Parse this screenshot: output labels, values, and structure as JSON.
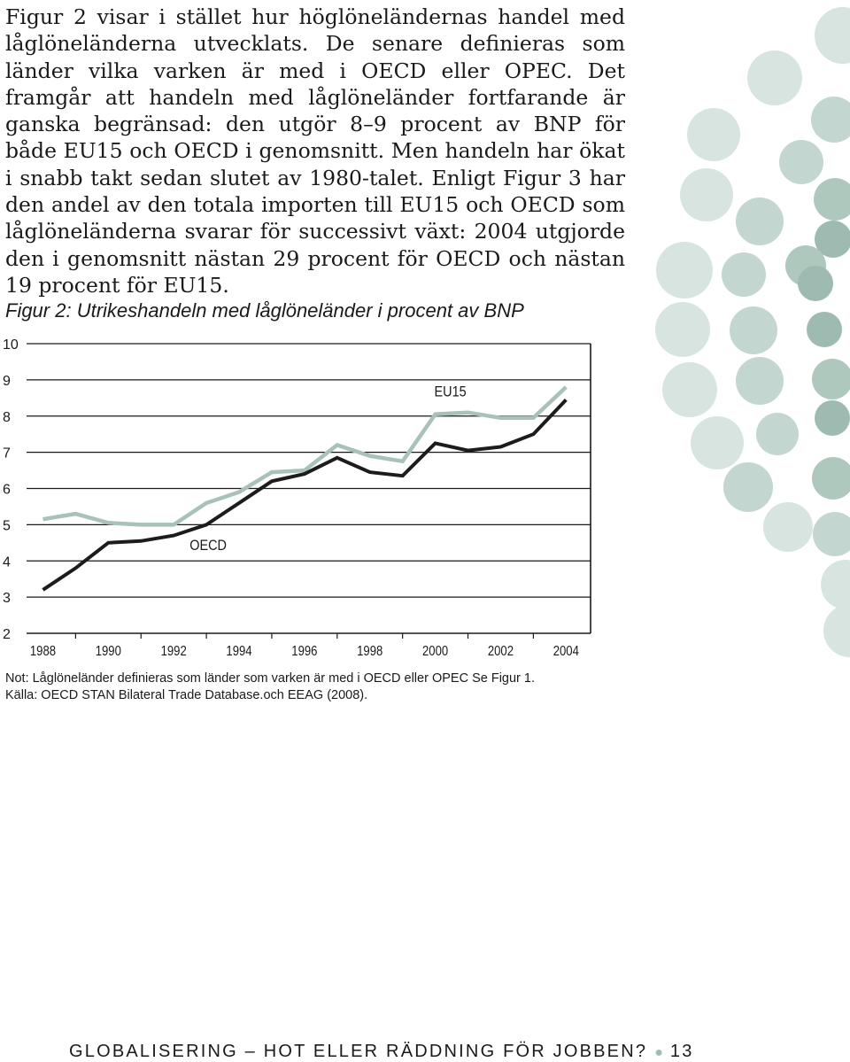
{
  "body_text": "Figur 2 visar i stället hur höglöneländernas handel med låglöneländerna utvecklats. De senare definieras som länder vilka varken är med i OECD eller OPEC. Det framgår att handeln med låglöneländer fortfarande är ganska begränsad: den utgör 8–9 procent av BNP för både EU15 och OECD i genomsnitt. Men handeln har ökat i snabb takt sedan slutet av 1980-talet. Enligt Figur 3 har den andel av den totala importen till EU15 och OECD som låglöneländerna svarar för successivt växt: 2004 utgjorde den i genomsnitt nästan 29 procent för OECD och nästan 19 procent för EU15.",
  "figure_title": "Figur 2: Utrikeshandeln med låglöneländer i procent av BNP",
  "chart_data": {
    "type": "line",
    "title": "Figur 2: Utrikeshandeln med låglöneländer i procent av BNP",
    "x": [
      1988,
      1989,
      1990,
      1991,
      1992,
      1993,
      1994,
      1995,
      1996,
      1997,
      1998,
      1999,
      2000,
      2001,
      2002,
      2003,
      2004
    ],
    "x_tick_labels": [
      "1988",
      "1990",
      "1992",
      "1994",
      "1996",
      "1998",
      "2000",
      "2002",
      "2004"
    ],
    "y_tick_labels": [
      "2",
      "3",
      "4",
      "5",
      "6",
      "7",
      "8",
      "9",
      "10"
    ],
    "ylim": [
      2,
      10
    ],
    "grid": "horizontal",
    "series": [
      {
        "name": "EU15",
        "color": "#a9c2b8",
        "values": [
          5.15,
          5.3,
          5.05,
          5.0,
          5.0,
          5.6,
          5.9,
          6.45,
          6.5,
          7.2,
          6.9,
          6.75,
          8.05,
          8.1,
          7.95,
          7.95,
          8.8
        ]
      },
      {
        "name": "OECD",
        "color": "#1c1c1c",
        "values": [
          3.2,
          3.8,
          4.5,
          4.55,
          4.7,
          5.0,
          5.6,
          6.2,
          6.4,
          6.85,
          6.45,
          6.35,
          7.25,
          7.05,
          7.15,
          7.5,
          8.45
        ]
      }
    ],
    "annotations": [
      "EU15",
      "OECD"
    ]
  },
  "notes": {
    "note": "Not: Låglöneländer definieras som länder som varken är med i OECD eller OPEC Se Figur 1.",
    "source": "Källa: OECD STAN Bilateral Trade Database.och EEAG (2008)."
  },
  "footer": {
    "title": "GLOBALISERING – HOT ELLER RÄDDNING FÖR JOBBEN?",
    "separator": "●",
    "page_number": "13"
  },
  "decoration": {
    "dot_colors": [
      "#d7e4df",
      "#c3d6cf",
      "#aec8be",
      "#9dbbb1"
    ]
  }
}
